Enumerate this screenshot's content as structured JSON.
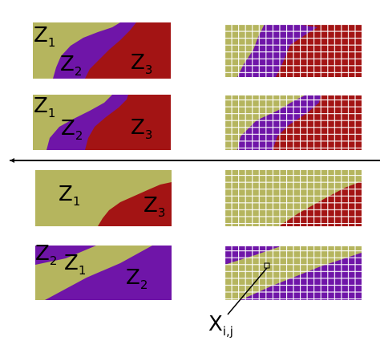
{
  "colors": {
    "z1": "#b5b55e",
    "z2": "#6f15a8",
    "z3": "#a31414",
    "grid_gap": "#ffffff",
    "divider": "#000000"
  },
  "zones": {
    "z1": {
      "main": "Z",
      "sub": "1"
    },
    "z2": {
      "main": "Z",
      "sub": "2"
    },
    "z3": {
      "main": "Z",
      "sub": "3"
    }
  },
  "cell_label": {
    "main": "X",
    "sub": "i,j"
  },
  "panels": [
    {
      "id": "row1",
      "labels": [
        "z1",
        "z2",
        "z3"
      ]
    },
    {
      "id": "row2",
      "labels": [
        "z1",
        "z2",
        "z3"
      ]
    },
    {
      "id": "row3",
      "labels": [
        "z1",
        "z3"
      ]
    },
    {
      "id": "row4",
      "labels": [
        "z2",
        "z1",
        "z2"
      ]
    }
  ]
}
